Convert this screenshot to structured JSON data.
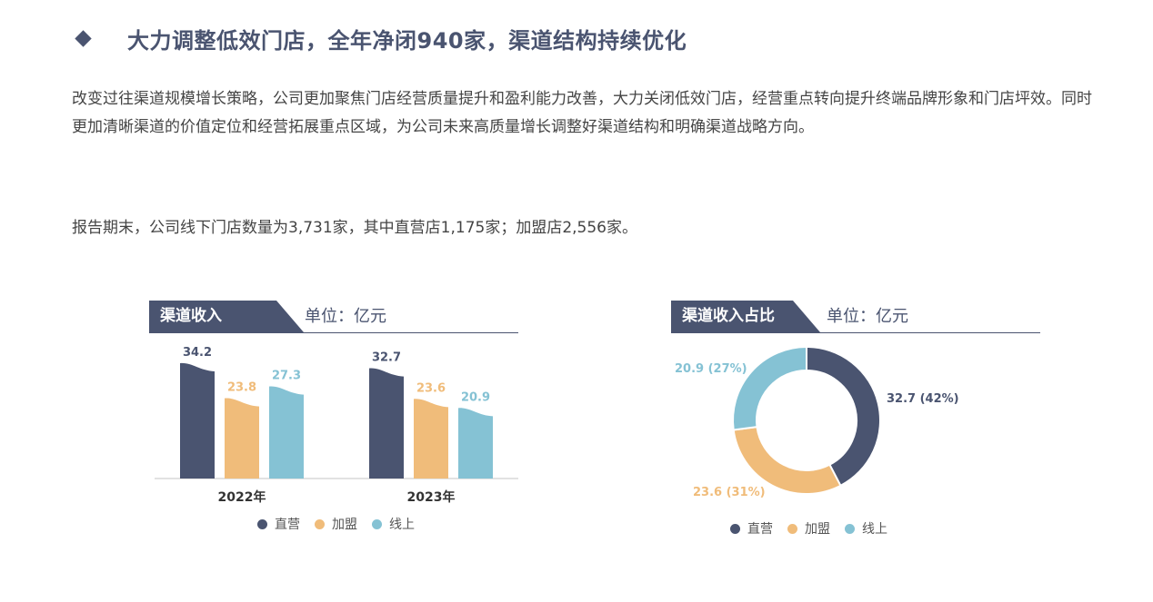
{
  "heading": {
    "title": "大力调整低效门店，全年净闭940家，渠道结构持续优化"
  },
  "paragraphs": [
    "改变过往渠道规模增长策略，公司更加聚焦门店经营质量提升和盈利能力改善，大力关闭低效门店，经营重点转向提升终端品牌形象和门店坪效。同时更加清晰渠道的价值定位和经营拓展重点区域，为公司未来高质量增长调整好渠道结构和明确渠道战略方向。",
    "报告期末，公司线下门店数量为3,731家，其中直营店1,175家；加盟店2,556家。"
  ],
  "colors": {
    "navy": "#4a5470",
    "orange": "#f0bc7a",
    "teal": "#85c2d4"
  },
  "bar_panel": {
    "tab_label": "渠道收入",
    "unit_label": "单位：亿元"
  },
  "pie_panel": {
    "tab_label": "渠道收入占比",
    "unit_label": "单位：亿元"
  },
  "chart_data": [
    {
      "type": "bar",
      "title": "渠道收入",
      "unit": "亿元",
      "categories": [
        "2022年",
        "2023年"
      ],
      "series": [
        {
          "name": "直营",
          "color": "#4a5470",
          "values": [
            34.2,
            32.7
          ]
        },
        {
          "name": "加盟",
          "color": "#f0bc7a",
          "values": [
            23.8,
            23.6
          ]
        },
        {
          "name": "线上",
          "color": "#85c2d4",
          "values": [
            27.3,
            20.9
          ]
        }
      ],
      "ylim": [
        0,
        35
      ],
      "grid": false,
      "legend": "bottom"
    },
    {
      "type": "pie",
      "style": "donut",
      "title": "渠道收入占比",
      "unit": "亿元",
      "slices": [
        {
          "name": "直营",
          "color": "#4a5470",
          "value": 32.7,
          "label": "32.7 (42%)"
        },
        {
          "name": "加盟",
          "color": "#f0bc7a",
          "value": 23.6,
          "label": "23.6 (31%)"
        },
        {
          "name": "线上",
          "color": "#85c2d4",
          "value": 20.9,
          "label": "20.9 (27%)"
        }
      ],
      "legend": "bottom"
    }
  ]
}
